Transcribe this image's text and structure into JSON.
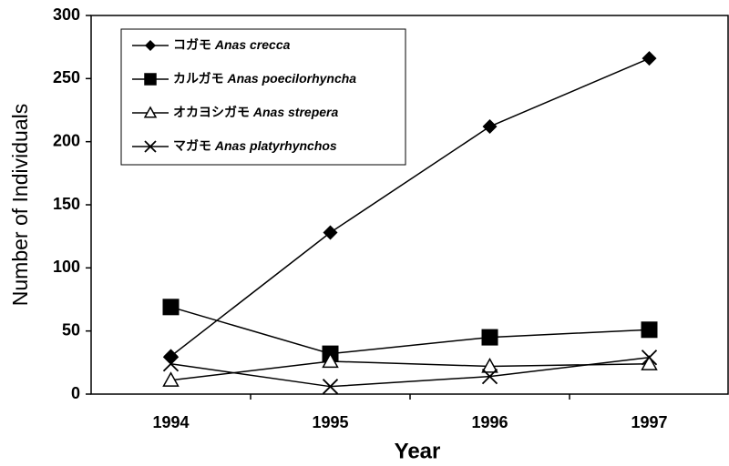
{
  "chart_data": {
    "type": "line",
    "xlabel": "Year",
    "ylabel": "Number of Individuals",
    "categories": [
      "1994",
      "1995",
      "1996",
      "1997"
    ],
    "series": [
      {
        "name": "コガモ Anas crecca",
        "color": "#000000",
        "marker": "diamond",
        "values": [
          30,
          128,
          212,
          266
        ]
      },
      {
        "name": "カルガモ Anas poecilorhyncha",
        "color": "#000000",
        "marker": "square",
        "values": [
          69,
          32,
          45,
          51
        ]
      },
      {
        "name": "オカヨシガモ Anas strepera",
        "color": "#000000",
        "marker": "triangle",
        "values": [
          11,
          26,
          22,
          24
        ]
      },
      {
        "name": "マガモ Anas platyrhynchos",
        "color": "#000000",
        "marker": "x",
        "values": [
          24,
          6,
          14,
          29
        ]
      }
    ],
    "ylim": [
      0,
      300
    ],
    "yticks": [
      0,
      50,
      100,
      150,
      200,
      250,
      300
    ],
    "legend": "upper left"
  }
}
